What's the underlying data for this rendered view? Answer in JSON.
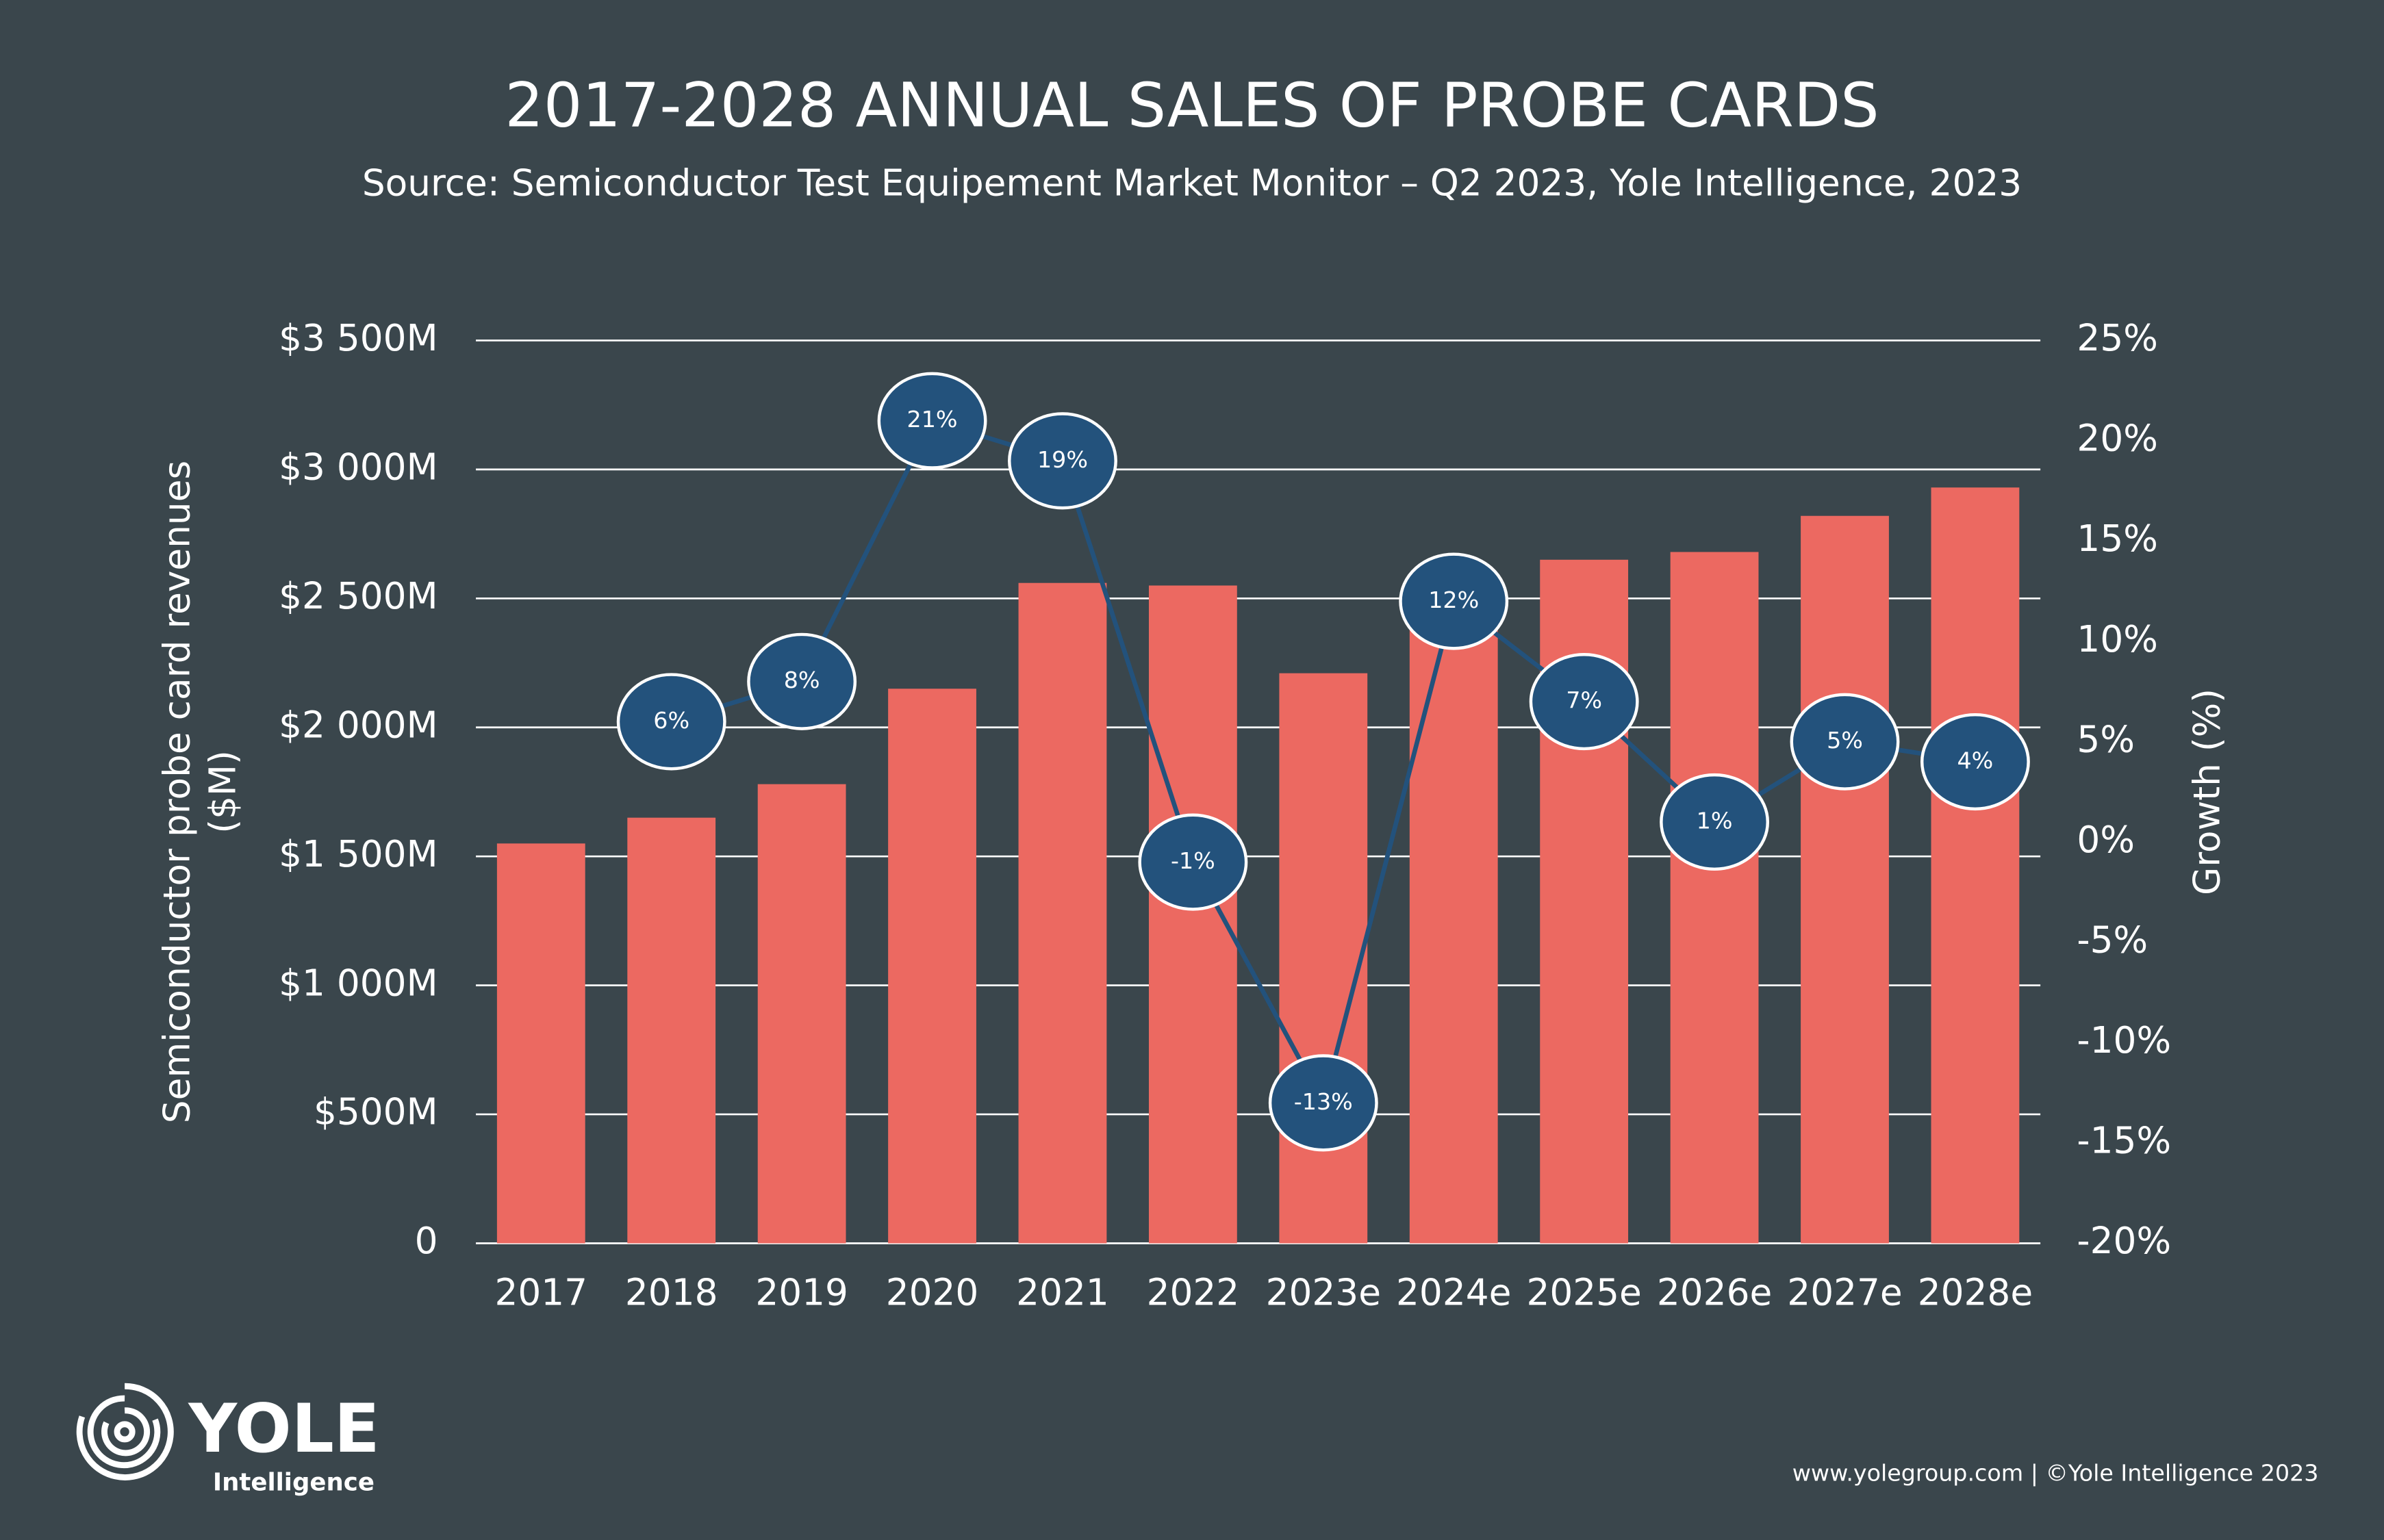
{
  "chart_data": {
    "type": "bar",
    "title": "2017-2028 ANNUAL SALES OF PROBE CARDS",
    "subtitle": "Source: Semiconductor Test Equipement Market Monitor – Q2 2023, Yole Intelligence, 2023",
    "y_label": [
      "Semiconductor probe card revenues",
      "($M)"
    ],
    "y2_label": "Growth (%)",
    "categories": [
      "2017",
      "2018",
      "2019",
      "2020",
      "2021",
      "2022",
      "2023e",
      "2024e",
      "2025e",
      "2026e",
      "2027e",
      "2028e"
    ],
    "series": [
      {
        "type": "bar",
        "color": "#ec6961",
        "values": [
          1550,
          1650,
          1780,
          2150,
          2560,
          2550,
          2210,
          2470,
          2650,
          2680,
          2820,
          2930
        ]
      },
      {
        "type": "line",
        "axis": "y2",
        "color": "#23527c",
        "values": [
          null,
          6,
          8,
          21,
          19,
          -1,
          -13,
          12,
          7,
          1,
          5,
          4
        ],
        "value_labels": [
          null,
          "6%",
          "8%",
          "21%",
          "19%",
          "-1%",
          "-13%",
          "12%",
          "7%",
          "1%",
          "5%",
          "4%"
        ]
      }
    ],
    "ylim": [
      0,
      3500
    ],
    "yticks": [
      0,
      {
        "value": 500,
        "label": "$500M"
      },
      {
        "value": 1000,
        "label": "$1 000M"
      },
      {
        "value": 1500,
        "label": "$1 500M"
      },
      {
        "value": 2000,
        "label": "$2 000M"
      },
      {
        "value": 2500,
        "label": "$2 500M"
      },
      {
        "value": 3000,
        "label": "$3 000M"
      },
      {
        "value": 3500,
        "label": "$3 500M"
      }
    ],
    "y2lim": [
      -20,
      25
    ],
    "y2ticks": [
      {
        "value": -20,
        "label": "-20%"
      },
      {
        "value": -15,
        "label": "-15%"
      },
      {
        "value": -10,
        "label": "-10%"
      },
      {
        "value": -5,
        "label": "-5%"
      },
      {
        "value": 0,
        "label": "0%"
      },
      {
        "value": 5,
        "label": "5%"
      },
      {
        "value": 10,
        "label": "10%"
      },
      {
        "value": 15,
        "label": "15%"
      },
      {
        "value": 20,
        "label": "20%"
      },
      {
        "value": 25,
        "label": "25%"
      }
    ],
    "grid": true
  },
  "logo": {
    "name": "YOLE",
    "sub": "Intelligence"
  },
  "footer": "www.yolegroup.com | ©Yole Intelligence 2023"
}
